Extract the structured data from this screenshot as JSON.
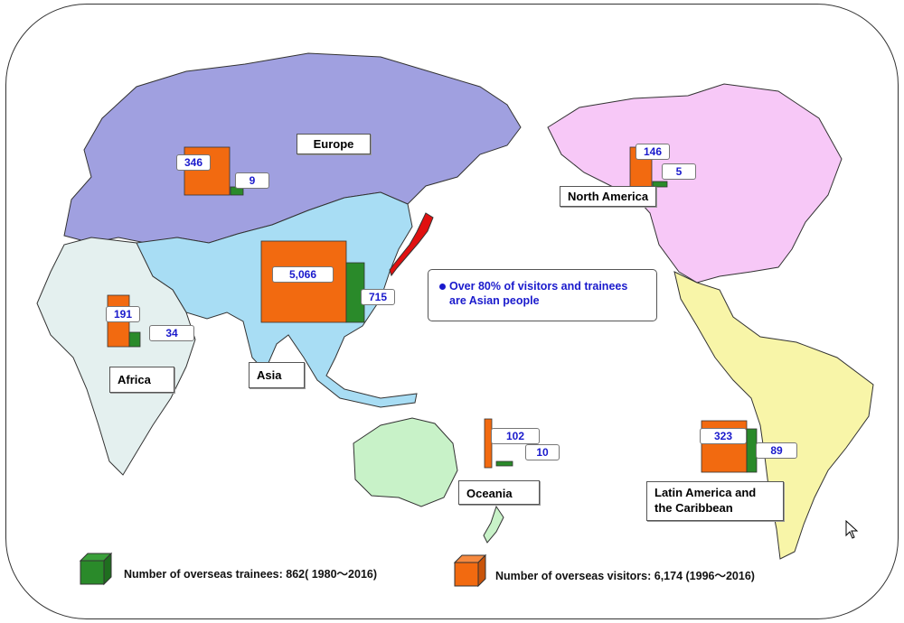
{
  "regions": [
    {
      "id": "europe",
      "label": "Europe",
      "visitors": "346",
      "trainees": "9",
      "color": "#a0a0e0"
    },
    {
      "id": "north-america",
      "label": "North America",
      "visitors": "146",
      "trainees": "5",
      "color": "#f7c8f7"
    },
    {
      "id": "asia",
      "label": "Asia",
      "visitors": "5,066",
      "trainees": "715",
      "color": "#a8ddf4"
    },
    {
      "id": "africa",
      "label": "Africa",
      "visitors": "191",
      "trainees": "34",
      "color": "#e4f0ef"
    },
    {
      "id": "oceania",
      "label": "Oceania",
      "visitors": "102",
      "trainees": "10",
      "color": "#c8f2c8"
    },
    {
      "id": "latin-america",
      "label": "Latin America and the Caribbean",
      "label_line1": "Latin America and",
      "label_line2": "the Caribbean",
      "visitors": "323",
      "trainees": "89",
      "color": "#f8f5a8"
    }
  ],
  "note": {
    "line1": "Over 80% of visitors and trainees",
    "line2": "are Asian people"
  },
  "legend": {
    "trainees": "Number of overseas trainees: 862( 1980～2016)",
    "visitors": "Number of overseas visitors: 6,174 (1996～2016)"
  },
  "colors": {
    "visitor_bar": "#f26a10",
    "trainee_bar": "#2a8a2a",
    "japan": "#e01010",
    "value_text": "#1a1acc"
  }
}
